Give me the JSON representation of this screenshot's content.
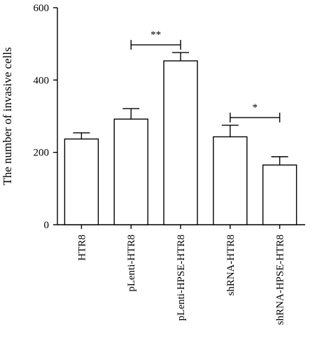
{
  "chart_data": {
    "type": "bar",
    "ylabel": "The number of invasive cells",
    "xlabel": "",
    "title": "",
    "ylim": [
      0,
      600
    ],
    "yticks": [
      0,
      200,
      400,
      600
    ],
    "categories": [
      "HTR8",
      "pLenti-HTR8",
      "pLenti-HPSE-HTR8",
      "shRNA-HTR8",
      "shRNA-HPSE-HTR8"
    ],
    "values": [
      237,
      292,
      453,
      243,
      165
    ],
    "errors": [
      17,
      29,
      23,
      32,
      23
    ],
    "significance": [
      {
        "from": "pLenti-HTR8",
        "to": "pLenti-HPSE-HTR8",
        "label": "**"
      },
      {
        "from": "shRNA-HTR8",
        "to": "shRNA-HPSE-HTR8",
        "label": "*"
      }
    ],
    "grid": false,
    "legend": "none"
  }
}
